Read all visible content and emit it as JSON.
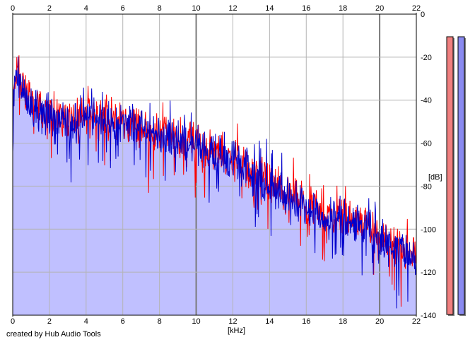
{
  "chart_data": {
    "type": "area",
    "xlabel": "[kHz]",
    "ylabel": "[dB]",
    "xlim": [
      0,
      22
    ],
    "ylim": [
      -140,
      0
    ],
    "x_ticks": [
      0,
      2,
      4,
      6,
      8,
      10,
      12,
      14,
      16,
      18,
      20,
      22
    ],
    "y_ticks": [
      0,
      -20,
      -40,
      -60,
      -80,
      -100,
      -120,
      -140
    ],
    "grid": true,
    "series": [
      {
        "color": "#ff0000",
        "envelope_x": [
          0,
          0.05,
          0.1,
          0.2,
          0.3,
          0.5,
          0.8,
          1,
          1.5,
          2,
          2.5,
          3,
          3.5,
          4,
          4.5,
          5,
          5.5,
          6,
          6.5,
          7,
          7.5,
          8,
          8.5,
          9,
          9.5,
          10,
          10.5,
          11,
          11.5,
          12,
          12.5,
          13,
          13.5,
          14,
          14.5,
          15,
          15.5,
          16,
          16.5,
          17,
          17.5,
          18,
          18.5,
          19,
          19.5,
          20,
          20.5,
          21,
          21.5,
          22
        ],
        "envelope_db": [
          -62,
          -40,
          -30,
          -26,
          -28,
          -33,
          -38,
          -40,
          -44,
          -46,
          -48,
          -49,
          -49,
          -47,
          -47,
          -48,
          -49,
          -50,
          -51,
          -53,
          -54,
          -55,
          -56,
          -57,
          -59,
          -59,
          -62,
          -63,
          -65,
          -67,
          -70,
          -73,
          -76,
          -78,
          -81,
          -84,
          -87,
          -89,
          -91,
          -93,
          -93,
          -93,
          -94,
          -97,
          -100,
          -104,
          -106,
          -109,
          -111,
          -113
        ]
      },
      {
        "color": "#0000cc",
        "envelope_x": [
          0,
          0.05,
          0.1,
          0.2,
          0.3,
          0.5,
          0.8,
          1,
          1.5,
          2,
          2.5,
          3,
          3.5,
          4,
          4.5,
          5,
          5.5,
          6,
          6.5,
          7,
          7.5,
          8,
          8.5,
          9,
          9.5,
          10,
          10.5,
          11,
          11.5,
          12,
          12.5,
          13,
          13.5,
          14,
          14.5,
          15,
          15.5,
          16,
          16.5,
          17,
          17.5,
          18,
          18.5,
          19,
          19.5,
          20,
          20.5,
          21,
          21.5,
          22
        ],
        "envelope_db": [
          -64,
          -42,
          -32,
          -28,
          -30,
          -35,
          -39,
          -42,
          -45,
          -47,
          -49,
          -50,
          -50,
          -47,
          -48,
          -49,
          -50,
          -51,
          -52,
          -54,
          -55,
          -56,
          -57,
          -58,
          -60,
          -60,
          -63,
          -64,
          -66,
          -68,
          -71,
          -74,
          -77,
          -79,
          -82,
          -85,
          -88,
          -90,
          -92,
          -94,
          -94,
          -94,
          -95,
          -98,
          -101,
          -105,
          -107,
          -110,
          -112,
          -114
        ]
      }
    ],
    "level_meters": [
      {
        "color": "#f08080"
      },
      {
        "color": "#8a8af0"
      }
    ]
  },
  "footer": {
    "credit": "created by Hub Audio Tools"
  },
  "colors": {
    "fill": "#c0c0ff",
    "grid_light": "#b4b4b4",
    "grid_major": "#7a7a7a",
    "axis": "#000000"
  }
}
